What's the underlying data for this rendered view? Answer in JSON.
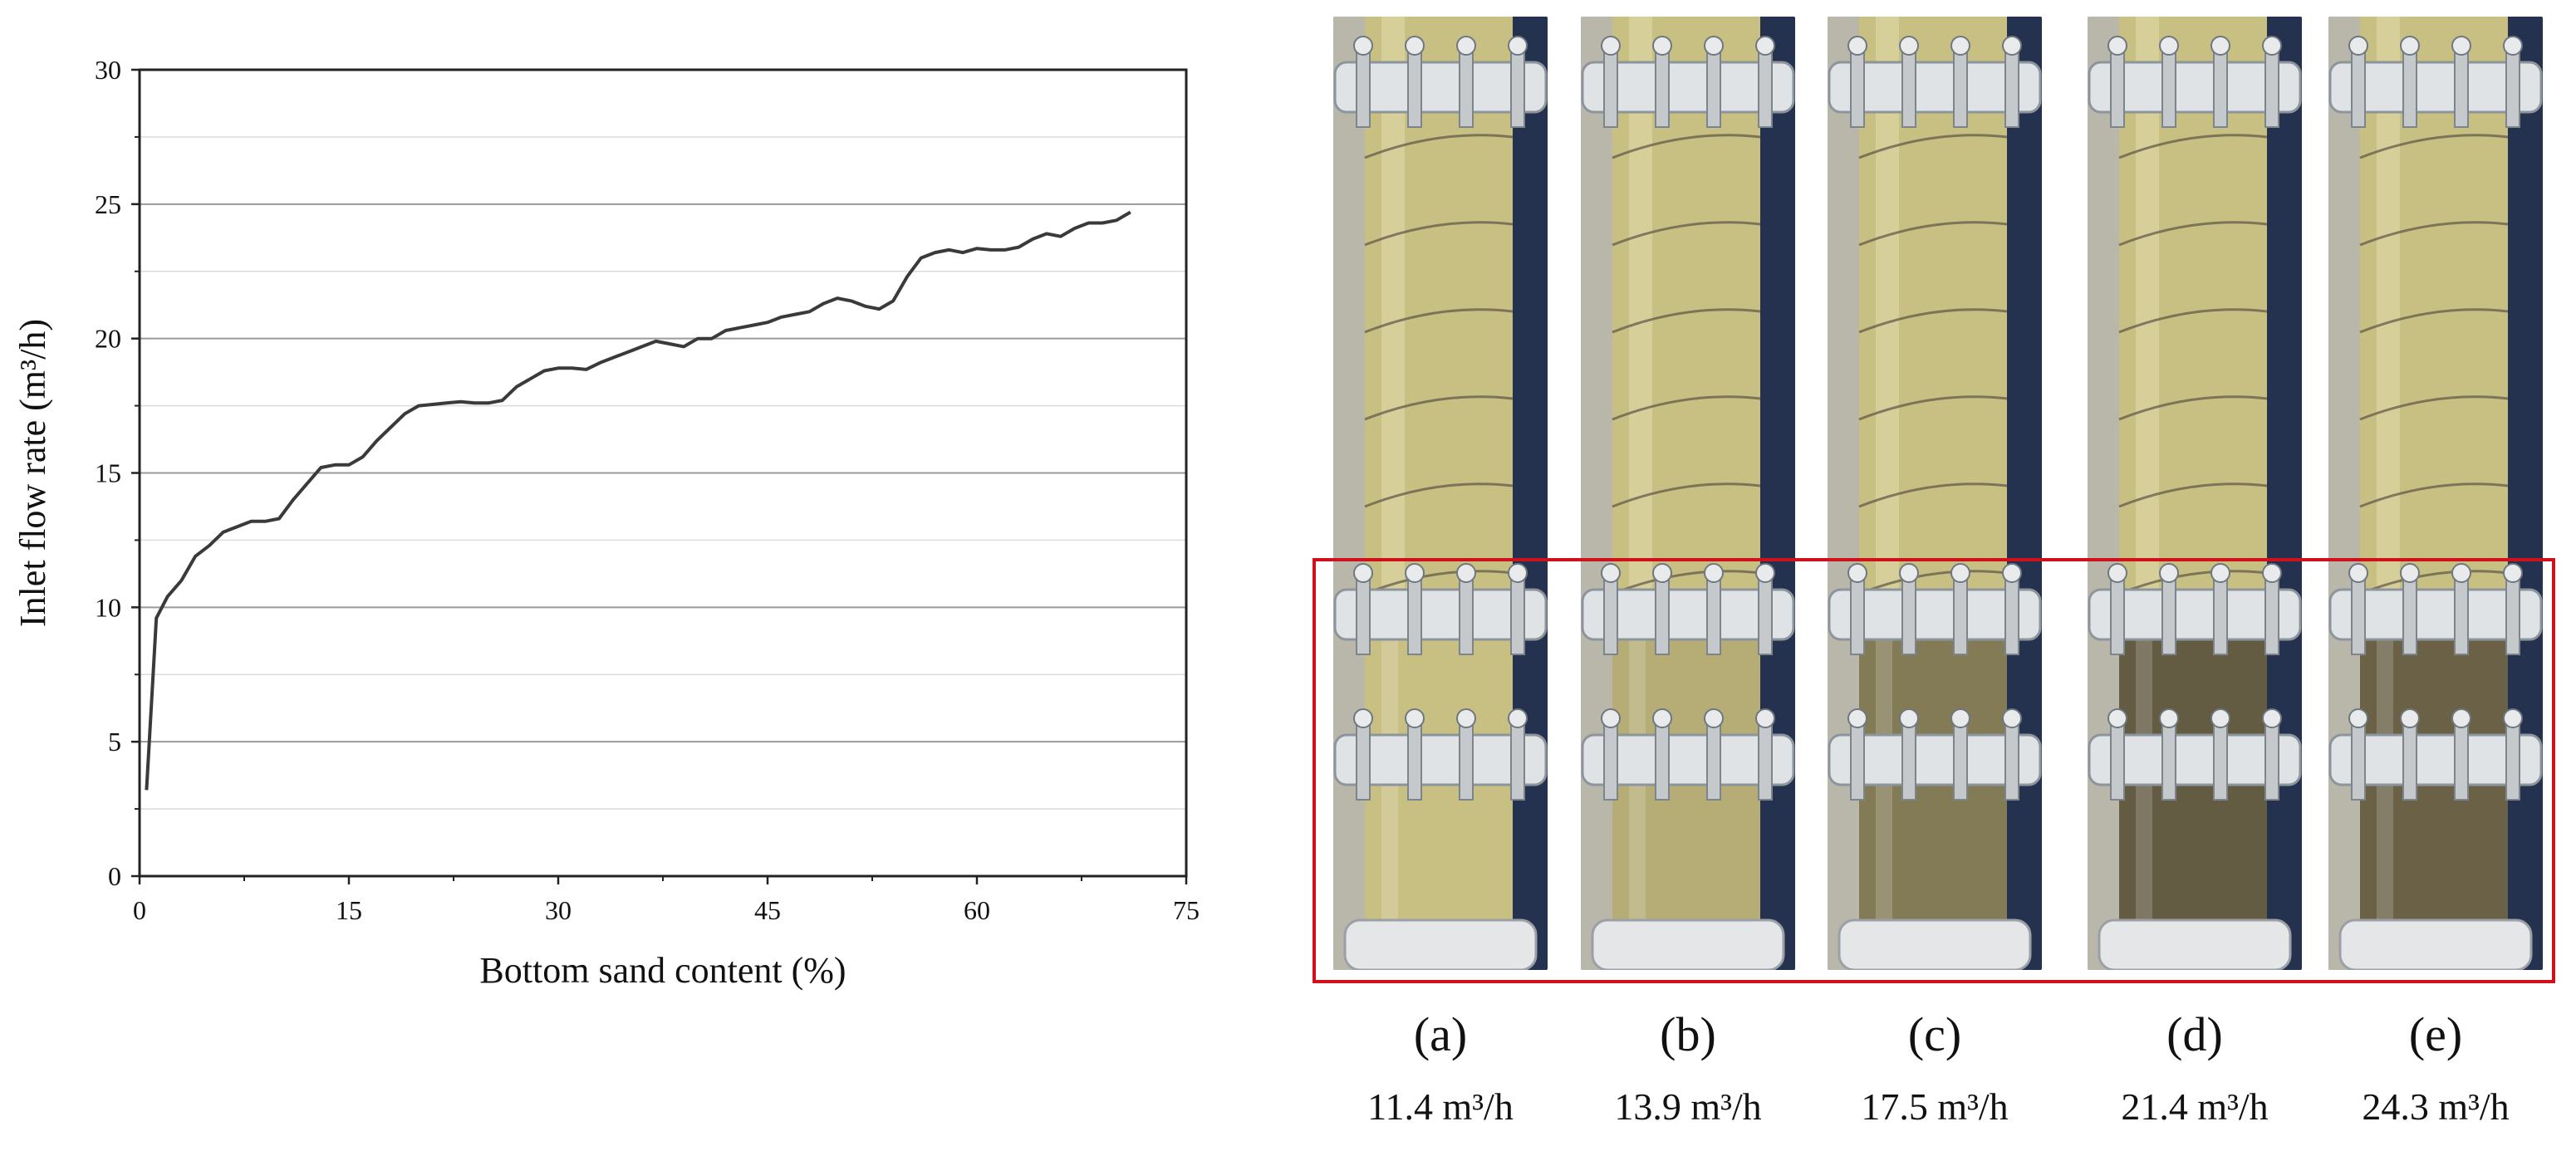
{
  "chart_data": {
    "type": "line",
    "xlabel": "Bottom sand content (%)",
    "ylabel": "Inlet flow rate (m³/h)",
    "xlim": [
      0,
      75
    ],
    "ylim": [
      0,
      30
    ],
    "x_ticks": [
      "0",
      "15",
      "30",
      "45",
      "60",
      "75"
    ],
    "y_ticks": [
      "0",
      "5",
      "10",
      "15",
      "20",
      "25",
      "30"
    ],
    "grid": "horizontal",
    "series": [
      {
        "color": "#3a3a3a",
        "x": [
          0.5,
          1.2,
          2.0,
          3.0,
          4.0,
          5.0,
          6.0,
          7.0,
          8.0,
          9.0,
          10.0,
          11.0,
          12.0,
          13.0,
          14.0,
          15.0,
          16.0,
          17.0,
          18.0,
          19.0,
          20.0,
          21.0,
          22.0,
          23.0,
          24.0,
          25.0,
          26.0,
          27.0,
          28.0,
          29.0,
          30.0,
          31.0,
          32.0,
          33.0,
          34.0,
          35.0,
          36.0,
          37.0,
          38.0,
          39.0,
          40.0,
          41.0,
          42.0,
          43.0,
          44.0,
          45.0,
          46.0,
          47.0,
          48.0,
          49.0,
          50.0,
          51.0,
          52.0,
          53.0,
          54.0,
          55.0,
          56.0,
          57.0,
          58.0,
          59.0,
          60.0,
          61.0,
          62.0,
          63.0,
          64.0,
          65.0,
          66.0,
          67.0,
          68.0,
          69.0,
          70.0,
          71.0
        ],
        "y": [
          3.2,
          9.6,
          10.4,
          11.0,
          11.9,
          12.3,
          12.8,
          13.0,
          13.2,
          13.2,
          13.3,
          14.0,
          14.6,
          15.2,
          15.3,
          15.3,
          15.6,
          16.2,
          16.7,
          17.2,
          17.5,
          17.55,
          17.6,
          17.65,
          17.6,
          17.6,
          17.7,
          18.2,
          18.5,
          18.8,
          18.9,
          18.9,
          18.85,
          19.1,
          19.3,
          19.5,
          19.7,
          19.9,
          19.8,
          19.7,
          20.0,
          20.0,
          20.3,
          20.4,
          20.5,
          20.6,
          20.8,
          20.9,
          21.0,
          21.3,
          21.5,
          21.4,
          21.2,
          21.1,
          21.4,
          22.3,
          23.0,
          23.2,
          23.3,
          23.2,
          23.35,
          23.3,
          23.3,
          23.4,
          23.7,
          23.9,
          23.8,
          24.1,
          24.3,
          24.3,
          24.4,
          24.7
        ]
      }
    ]
  },
  "panels": [
    {
      "letter": "(a)",
      "rate": "11.4 m³/h",
      "turbidity": 0.0
    },
    {
      "letter": "(b)",
      "rate": "13.9 m³/h",
      "turbidity": 0.15
    },
    {
      "letter": "(c)",
      "rate": "17.5 m³/h",
      "turbidity": 0.55
    },
    {
      "letter": "(d)",
      "rate": "21.4 m³/h",
      "turbidity": 0.8
    },
    {
      "letter": "(e)",
      "rate": "24.3 m³/h",
      "turbidity": 0.75
    }
  ],
  "colors": {
    "line": "#3a3a3a",
    "highlight_box": "#d0111b",
    "liquid": "#c8bf82",
    "sediment": "#4a4232"
  }
}
